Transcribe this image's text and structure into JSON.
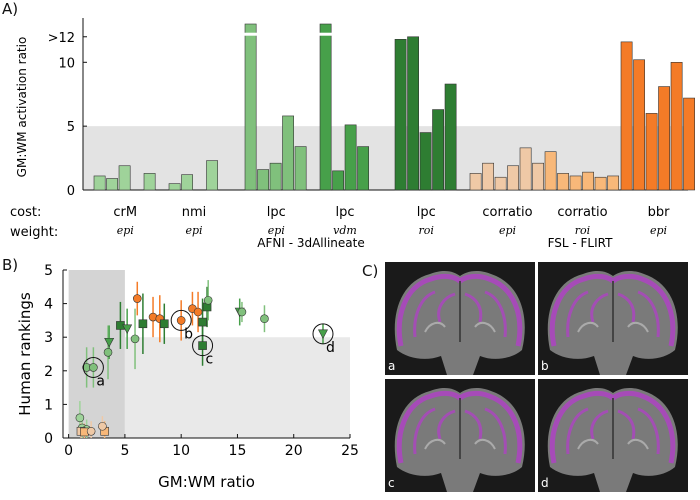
{
  "panel_labels": {
    "a": "A)",
    "b": "B)",
    "c": "C)"
  },
  "chart_data": [
    {
      "type": "bar",
      "title": "",
      "ylabel": "GM:WM activation ratio",
      "ylim": [
        0,
        13
      ],
      "yticks": [
        "0",
        "5",
        "10",
        ">12"
      ],
      "reference_band": [
        0,
        5
      ],
      "row_labels": {
        "cost": "cost:",
        "weight": "weight:"
      },
      "tool_labels": {
        "afni": "AFNI - 3dAllineate",
        "fsl": "FSL - FLIRT"
      },
      "groups": [
        {
          "cost": "crM",
          "weight": "epi",
          "color": "#9fd39a",
          "values": [
            1.1,
            0.9,
            1.9,
            0,
            1.3
          ]
        },
        {
          "cost": "nmi",
          "weight": "epi",
          "color": "#9fd39a",
          "values": [
            0.5,
            1.2,
            0,
            2.3
          ]
        },
        {
          "cost": "lpc",
          "weight": "epi",
          "color": "#80c07c",
          "values": [
            13,
            1.6,
            2.1,
            5.8,
            3.4
          ]
        },
        {
          "cost": "lpc",
          "weight": "vdm",
          "color": "#47a04a",
          "values": [
            13,
            1.5,
            5.1,
            3.4
          ]
        },
        {
          "cost": "lpc",
          "weight": "roi",
          "color": "#2e7d32",
          "values": [
            11.8,
            12.0,
            4.5,
            6.3,
            8.3
          ]
        },
        {
          "cost": "corratio",
          "weight": "epi",
          "color": "#efc9a6",
          "values": [
            1.3,
            2.1,
            1.0,
            1.9,
            3.3,
            2.1
          ]
        },
        {
          "cost": "corratio",
          "weight": "roi",
          "color": "#f8b879",
          "values": [
            3.0,
            1.3,
            1.1,
            1.4,
            1.0,
            1.1
          ]
        },
        {
          "cost": "bbr",
          "weight": "epi",
          "color": "#f47b27",
          "values": [
            11.6,
            10.2,
            6.0,
            8.1,
            10.0,
            7.2
          ]
        }
      ]
    },
    {
      "type": "scatter",
      "xlabel": "GM:WM ratio",
      "ylabel": "Human rankings",
      "xlim": [
        -0.5,
        25
      ],
      "ylim": [
        0,
        5
      ],
      "xticks": [
        0,
        5,
        10,
        15,
        20,
        25
      ],
      "yticks": [
        0,
        1,
        2,
        3,
        4,
        5
      ],
      "bands": [
        {
          "x": [
            0,
            5
          ],
          "y": [
            0,
            5
          ],
          "shade": "dark"
        },
        {
          "x": [
            5,
            25
          ],
          "y": [
            0,
            3
          ],
          "shade": "light"
        }
      ],
      "points": [
        {
          "x": 1.0,
          "y": 0.6,
          "yerr": 0.5,
          "marker": "circle",
          "color": "#9fd39a"
        },
        {
          "x": 1.2,
          "y": 0.3,
          "yerr": 0.3,
          "marker": "circle",
          "color": "#9fd39a"
        },
        {
          "x": 1.6,
          "y": 0.25,
          "yerr": 0.3,
          "marker": "circle",
          "color": "#9fd39a"
        },
        {
          "x": 1.1,
          "y": 0.2,
          "yerr": 0.25,
          "marker": "square",
          "color": "#efc9a6"
        },
        {
          "x": 1.4,
          "y": 0.18,
          "yerr": 0.25,
          "marker": "square",
          "color": "#f8b879"
        },
        {
          "x": 2.0,
          "y": 0.2,
          "yerr": 0.3,
          "marker": "circle",
          "color": "#efc9a6"
        },
        {
          "x": 3.2,
          "y": 0.2,
          "yerr": 0.3,
          "marker": "square",
          "color": "#f8b879"
        },
        {
          "x": 3.0,
          "y": 0.35,
          "yerr": 0.3,
          "marker": "circle",
          "color": "#efc9a6"
        },
        {
          "x": 1.6,
          "y": 2.1,
          "yerr": 0.6,
          "marker": "circle",
          "color": "#80c07c"
        },
        {
          "x": 2.2,
          "y": 2.1,
          "yerr": 0.6,
          "marker": "circle",
          "color": "#80c07c"
        },
        {
          "x": 3.5,
          "y": 2.55,
          "yerr": 0.8,
          "marker": "circle",
          "color": "#80c07c"
        },
        {
          "x": 3.6,
          "y": 2.85,
          "yerr": 0.5,
          "marker": "triangle",
          "color": "#47a04a"
        },
        {
          "x": 4.6,
          "y": 3.35,
          "yerr": 0.7,
          "marker": "square",
          "color": "#2e7d32"
        },
        {
          "x": 5.2,
          "y": 3.25,
          "yerr": 0.6,
          "marker": "triangle",
          "color": "#47a04a"
        },
        {
          "x": 5.9,
          "y": 2.95,
          "yerr": 0.9,
          "marker": "circle",
          "color": "#80c07c"
        },
        {
          "x": 6.1,
          "y": 4.15,
          "yerr": 0.5,
          "marker": "circle",
          "color": "#f47b27"
        },
        {
          "x": 6.6,
          "y": 3.4,
          "yerr": 0.9,
          "marker": "square",
          "color": "#2e7d32"
        },
        {
          "x": 7.5,
          "y": 3.6,
          "yerr": 0.6,
          "marker": "circle",
          "color": "#f47b27"
        },
        {
          "x": 8.1,
          "y": 3.55,
          "yerr": 0.7,
          "marker": "circle",
          "color": "#f47b27"
        },
        {
          "x": 8.5,
          "y": 3.4,
          "yerr": 0.6,
          "marker": "square",
          "color": "#2e7d32"
        },
        {
          "x": 10.0,
          "y": 3.5,
          "yerr": 0.6,
          "marker": "circle",
          "color": "#f47b27"
        },
        {
          "x": 11.0,
          "y": 3.85,
          "yerr": 0.5,
          "marker": "circle",
          "color": "#f47b27"
        },
        {
          "x": 11.5,
          "y": 3.75,
          "yerr": 0.6,
          "marker": "circle",
          "color": "#f47b27"
        },
        {
          "x": 11.9,
          "y": 3.45,
          "yerr": 0.7,
          "marker": "square",
          "color": "#2e7d32"
        },
        {
          "x": 12.3,
          "y": 3.9,
          "yerr": 0.6,
          "marker": "square",
          "color": "#2e7d32"
        },
        {
          "x": 11.9,
          "y": 2.75,
          "yerr": 0.6,
          "marker": "square",
          "color": "#2e7d32"
        },
        {
          "x": 12.4,
          "y": 4.1,
          "yerr": 0.6,
          "marker": "circle",
          "color": "#80c07c"
        },
        {
          "x": 15.2,
          "y": 3.75,
          "yerr": 0.4,
          "marker": "triangle",
          "color": "#47a04a"
        },
        {
          "x": 15.4,
          "y": 3.75,
          "yerr": 0.3,
          "marker": "circle",
          "color": "#80c07c"
        },
        {
          "x": 17.4,
          "y": 3.55,
          "yerr": 0.4,
          "marker": "circle",
          "color": "#80c07c"
        },
        {
          "x": 22.6,
          "y": 3.1,
          "yerr": 0.3,
          "marker": "triangle",
          "color": "#47a04a"
        }
      ],
      "annotations": [
        {
          "label": "a",
          "x": 2.2,
          "y": 2.1
        },
        {
          "label": "b",
          "x": 10.0,
          "y": 3.5
        },
        {
          "label": "c",
          "x": 11.9,
          "y": 2.75
        },
        {
          "label": "d",
          "x": 22.6,
          "y": 3.1
        }
      ]
    }
  ],
  "panel_c": {
    "images": [
      {
        "label": "a",
        "name": "brain-slice-a"
      },
      {
        "label": "b",
        "name": "brain-slice-b"
      },
      {
        "label": "c",
        "name": "brain-slice-c"
      },
      {
        "label": "d",
        "name": "brain-slice-d"
      }
    ],
    "overlay_color": "#b140c8"
  }
}
